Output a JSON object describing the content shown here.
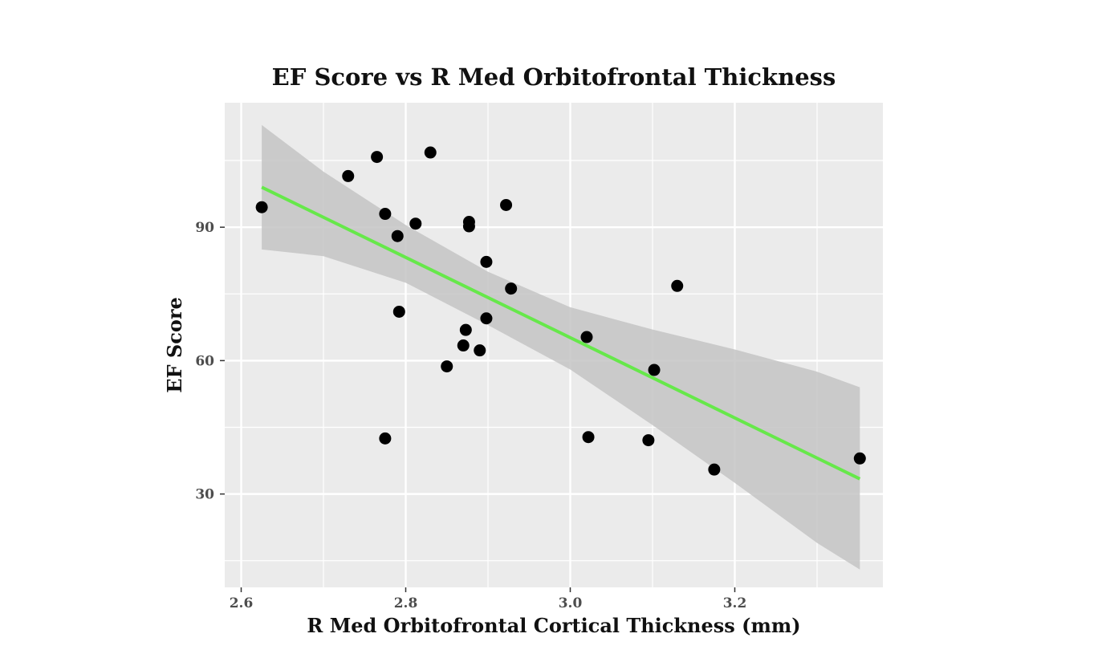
{
  "chart_data": {
    "type": "scatter",
    "title": "EF Score vs R Med Orbitofrontal Thickness",
    "xlabel": "R Med Orbitofrontal Cortical Thickness (mm)",
    "ylabel": "EF Score",
    "xlim": [
      2.58,
      3.38
    ],
    "ylim": [
      9,
      118
    ],
    "xticks": [
      {
        "value": 2.6,
        "label": "2.6"
      },
      {
        "value": 2.8,
        "label": "2.8"
      },
      {
        "value": 3.0,
        "label": "3.0"
      },
      {
        "value": 3.2,
        "label": "3.2"
      }
    ],
    "yticks": [
      {
        "value": 30,
        "label": "30"
      },
      {
        "value": 60,
        "label": "60"
      },
      {
        "value": 90,
        "label": "90"
      }
    ],
    "x_minor": [
      2.7,
      2.9,
      3.1,
      3.3
    ],
    "y_minor": [
      15,
      45,
      75,
      105
    ],
    "grid": true,
    "panel_color": "#ebebeb",
    "grid_color": "#ffffff",
    "point_color": "#000000",
    "fit_line_color": "#66e84a",
    "ribbon_color": "#c4c4c4",
    "points": [
      {
        "x": 2.625,
        "y": 94.5
      },
      {
        "x": 2.73,
        "y": 101.5
      },
      {
        "x": 2.765,
        "y": 105.8
      },
      {
        "x": 2.775,
        "y": 93.0
      },
      {
        "x": 2.775,
        "y": 42.5
      },
      {
        "x": 2.79,
        "y": 88.0
      },
      {
        "x": 2.792,
        "y": 71.0
      },
      {
        "x": 2.812,
        "y": 90.8
      },
      {
        "x": 2.83,
        "y": 106.8
      },
      {
        "x": 2.85,
        "y": 58.7
      },
      {
        "x": 2.87,
        "y": 63.4
      },
      {
        "x": 2.873,
        "y": 66.9
      },
      {
        "x": 2.877,
        "y": 91.2
      },
      {
        "x": 2.877,
        "y": 90.2
      },
      {
        "x": 2.89,
        "y": 62.3
      },
      {
        "x": 2.898,
        "y": 82.2
      },
      {
        "x": 2.898,
        "y": 69.5
      },
      {
        "x": 2.922,
        "y": 95.0
      },
      {
        "x": 2.928,
        "y": 76.2
      },
      {
        "x": 3.02,
        "y": 65.3
      },
      {
        "x": 3.022,
        "y": 42.8
      },
      {
        "x": 3.095,
        "y": 42.1
      },
      {
        "x": 3.102,
        "y": 57.9
      },
      {
        "x": 3.13,
        "y": 76.8
      },
      {
        "x": 3.175,
        "y": 35.5
      },
      {
        "x": 3.352,
        "y": 38.0
      }
    ],
    "fit_line": [
      {
        "x": 2.625,
        "y": 99.0
      },
      {
        "x": 3.352,
        "y": 33.4
      }
    ],
    "confidence_band": {
      "x": [
        2.625,
        2.7,
        2.8,
        2.9,
        3.0,
        3.1,
        3.2,
        3.3,
        3.352
      ],
      "upper": [
        113.0,
        102.5,
        90.5,
        80.0,
        72.0,
        67.0,
        62.5,
        57.5,
        54.0
      ],
      "lower": [
        85.0,
        83.5,
        77.5,
        68.0,
        58.0,
        45.5,
        32.5,
        19.0,
        13.0
      ]
    }
  }
}
